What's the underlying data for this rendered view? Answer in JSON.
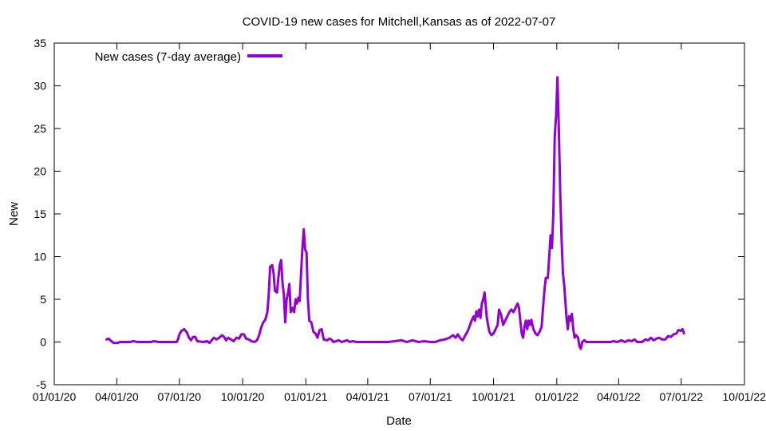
{
  "chart_data": {
    "type": "line",
    "title": "COVID-19 new cases for Mitchell,Kansas as of 2022-07-07",
    "xlabel": "Date",
    "ylabel": "New",
    "xlim": [
      "2020-01-01",
      "2022-10-01"
    ],
    "ylim": [
      -5,
      35
    ],
    "y_ticks": [
      -5,
      0,
      5,
      10,
      15,
      20,
      25,
      30,
      35
    ],
    "x_ticks": [
      {
        "date": "2020-01-01",
        "label": "01/01/20"
      },
      {
        "date": "2020-04-01",
        "label": "04/01/20"
      },
      {
        "date": "2020-07-01",
        "label": "07/01/20"
      },
      {
        "date": "2020-10-01",
        "label": "10/01/20"
      },
      {
        "date": "2021-01-01",
        "label": "01/01/21"
      },
      {
        "date": "2021-04-01",
        "label": "04/01/21"
      },
      {
        "date": "2021-07-01",
        "label": "07/01/21"
      },
      {
        "date": "2021-10-01",
        "label": "10/01/21"
      },
      {
        "date": "2022-01-01",
        "label": "01/01/22"
      },
      {
        "date": "2022-04-01",
        "label": "04/01/22"
      },
      {
        "date": "2022-07-01",
        "label": "07/01/22"
      },
      {
        "date": "2022-10-01",
        "label": "10/01/22"
      }
    ],
    "grid": false,
    "legend_position": "top-left",
    "series": [
      {
        "name": "New cases (7-day average)",
        "color": "#9400d3",
        "points": [
          [
            "2020-03-17",
            0.3
          ],
          [
            "2020-03-20",
            0.4
          ],
          [
            "2020-03-24",
            0.1
          ],
          [
            "2020-03-27",
            -0.1
          ],
          [
            "2020-04-03",
            -0.1
          ],
          [
            "2020-04-05",
            0.0
          ],
          [
            "2020-04-20",
            0.0
          ],
          [
            "2020-04-25",
            0.1
          ],
          [
            "2020-05-01",
            0.0
          ],
          [
            "2020-05-20",
            0.0
          ],
          [
            "2020-05-25",
            0.1
          ],
          [
            "2020-06-01",
            0.0
          ],
          [
            "2020-06-27",
            0.0
          ],
          [
            "2020-06-29",
            0.3
          ],
          [
            "2020-07-01",
            0.9
          ],
          [
            "2020-07-04",
            1.3
          ],
          [
            "2020-07-08",
            1.5
          ],
          [
            "2020-07-12",
            1.1
          ],
          [
            "2020-07-15",
            0.5
          ],
          [
            "2020-07-18",
            0.2
          ],
          [
            "2020-07-21",
            0.6
          ],
          [
            "2020-07-24",
            0.6
          ],
          [
            "2020-07-27",
            0.1
          ],
          [
            "2020-08-05",
            0.0
          ],
          [
            "2020-08-10",
            0.1
          ],
          [
            "2020-08-14",
            -0.1
          ],
          [
            "2020-08-17",
            0.2
          ],
          [
            "2020-08-20",
            0.5
          ],
          [
            "2020-08-24",
            0.3
          ],
          [
            "2020-08-28",
            0.5
          ],
          [
            "2020-09-01",
            0.8
          ],
          [
            "2020-09-04",
            0.6
          ],
          [
            "2020-09-07",
            0.2
          ],
          [
            "2020-09-10",
            0.5
          ],
          [
            "2020-09-14",
            0.3
          ],
          [
            "2020-09-18",
            0.1
          ],
          [
            "2020-09-22",
            0.5
          ],
          [
            "2020-09-26",
            0.4
          ],
          [
            "2020-09-29",
            0.9
          ],
          [
            "2020-10-03",
            0.9
          ],
          [
            "2020-10-06",
            0.4
          ],
          [
            "2020-10-10",
            0.3
          ],
          [
            "2020-10-14",
            0.1
          ],
          [
            "2020-10-18",
            0.0
          ],
          [
            "2020-10-22",
            0.2
          ],
          [
            "2020-10-25",
            0.8
          ],
          [
            "2020-10-28",
            1.7
          ],
          [
            "2020-10-31",
            2.3
          ],
          [
            "2020-11-03",
            2.6
          ],
          [
            "2020-11-06",
            3.5
          ],
          [
            "2020-11-08",
            5.5
          ],
          [
            "2020-11-10",
            8.8
          ],
          [
            "2020-11-13",
            9.0
          ],
          [
            "2020-11-15",
            8.1
          ],
          [
            "2020-11-17",
            6.0
          ],
          [
            "2020-11-20",
            5.8
          ],
          [
            "2020-11-22",
            7.5
          ],
          [
            "2020-11-24",
            9.0
          ],
          [
            "2020-11-26",
            9.6
          ],
          [
            "2020-11-28",
            7.0
          ],
          [
            "2020-11-30",
            5.5
          ],
          [
            "2020-12-02",
            2.3
          ],
          [
            "2020-12-04",
            5.0
          ],
          [
            "2020-12-06",
            5.7
          ],
          [
            "2020-12-08",
            6.8
          ],
          [
            "2020-12-10",
            3.5
          ],
          [
            "2020-12-13",
            4.0
          ],
          [
            "2020-12-15",
            3.5
          ],
          [
            "2020-12-17",
            5.0
          ],
          [
            "2020-12-19",
            4.5
          ],
          [
            "2020-12-21",
            5.2
          ],
          [
            "2020-12-23",
            4.8
          ],
          [
            "2020-12-25",
            8.0
          ],
          [
            "2020-12-27",
            11.0
          ],
          [
            "2020-12-29",
            13.2
          ],
          [
            "2020-12-31",
            10.8
          ],
          [
            "2021-01-02",
            10.5
          ],
          [
            "2021-01-04",
            5.0
          ],
          [
            "2021-01-06",
            2.5
          ],
          [
            "2021-01-09",
            2.3
          ],
          [
            "2021-01-12",
            1.2
          ],
          [
            "2021-01-15",
            1.0
          ],
          [
            "2021-01-18",
            0.5
          ],
          [
            "2021-01-21",
            1.4
          ],
          [
            "2021-01-24",
            1.5
          ],
          [
            "2021-01-27",
            0.3
          ],
          [
            "2021-02-01",
            0.2
          ],
          [
            "2021-02-04",
            0.4
          ],
          [
            "2021-02-07",
            0.3
          ],
          [
            "2021-02-10",
            0.0
          ],
          [
            "2021-02-14",
            0.1
          ],
          [
            "2021-02-18",
            0.2
          ],
          [
            "2021-02-22",
            0.0
          ],
          [
            "2021-02-26",
            0.1
          ],
          [
            "2021-03-02",
            0.2
          ],
          [
            "2021-03-06",
            0.0
          ],
          [
            "2021-03-10",
            0.1
          ],
          [
            "2021-03-16",
            0.0
          ],
          [
            "2021-04-01",
            0.0
          ],
          [
            "2021-04-20",
            0.0
          ],
          [
            "2021-05-01",
            0.0
          ],
          [
            "2021-05-10",
            0.1
          ],
          [
            "2021-05-20",
            0.2
          ],
          [
            "2021-05-28",
            0.0
          ],
          [
            "2021-06-05",
            0.2
          ],
          [
            "2021-06-14",
            0.0
          ],
          [
            "2021-06-22",
            0.1
          ],
          [
            "2021-07-01",
            0.0
          ],
          [
            "2021-07-08",
            0.0
          ],
          [
            "2021-07-15",
            0.2
          ],
          [
            "2021-07-22",
            0.3
          ],
          [
            "2021-07-29",
            0.5
          ],
          [
            "2021-08-03",
            0.8
          ],
          [
            "2021-08-07",
            0.5
          ],
          [
            "2021-08-10",
            0.9
          ],
          [
            "2021-08-14",
            0.4
          ],
          [
            "2021-08-17",
            0.2
          ],
          [
            "2021-08-21",
            0.8
          ],
          [
            "2021-08-24",
            1.2
          ],
          [
            "2021-08-27",
            1.8
          ],
          [
            "2021-08-30",
            2.5
          ],
          [
            "2021-09-02",
            3.0
          ],
          [
            "2021-09-04",
            2.5
          ],
          [
            "2021-09-06",
            3.6
          ],
          [
            "2021-09-08",
            3.0
          ],
          [
            "2021-09-10",
            3.8
          ],
          [
            "2021-09-12",
            2.8
          ],
          [
            "2021-09-14",
            4.5
          ],
          [
            "2021-09-16",
            5.0
          ],
          [
            "2021-09-18",
            5.8
          ],
          [
            "2021-09-21",
            3.0
          ],
          [
            "2021-09-23",
            2.0
          ],
          [
            "2021-09-25",
            1.2
          ],
          [
            "2021-09-28",
            0.8
          ],
          [
            "2021-10-01",
            1.0
          ],
          [
            "2021-10-04",
            1.5
          ],
          [
            "2021-10-07",
            2.0
          ],
          [
            "2021-10-09",
            3.8
          ],
          [
            "2021-10-12",
            3.2
          ],
          [
            "2021-10-15",
            2.0
          ],
          [
            "2021-10-18",
            2.5
          ],
          [
            "2021-10-21",
            3.0
          ],
          [
            "2021-10-24",
            3.5
          ],
          [
            "2021-10-27",
            3.8
          ],
          [
            "2021-10-30",
            3.5
          ],
          [
            "2021-11-02",
            4.0
          ],
          [
            "2021-11-05",
            4.5
          ],
          [
            "2021-11-07",
            4.0
          ],
          [
            "2021-11-09",
            2.5
          ],
          [
            "2021-11-11",
            1.0
          ],
          [
            "2021-11-13",
            0.5
          ],
          [
            "2021-11-15",
            1.8
          ],
          [
            "2021-11-17",
            2.5
          ],
          [
            "2021-11-19",
            1.5
          ],
          [
            "2021-11-21",
            2.5
          ],
          [
            "2021-11-23",
            2.0
          ],
          [
            "2021-11-25",
            2.6
          ],
          [
            "2021-11-28",
            1.5
          ],
          [
            "2021-12-01",
            1.0
          ],
          [
            "2021-12-04",
            0.8
          ],
          [
            "2021-12-07",
            1.2
          ],
          [
            "2021-12-10",
            1.8
          ],
          [
            "2021-12-12",
            4.0
          ],
          [
            "2021-12-14",
            6.0
          ],
          [
            "2021-12-16",
            7.5
          ],
          [
            "2021-12-19",
            7.5
          ],
          [
            "2021-12-21",
            10.0
          ],
          [
            "2021-12-23",
            12.5
          ],
          [
            "2021-12-25",
            11.0
          ],
          [
            "2021-12-27",
            15.0
          ],
          [
            "2021-12-29",
            24.0
          ],
          [
            "2021-12-31",
            26.5
          ],
          [
            "2022-01-02",
            31.0
          ],
          [
            "2022-01-04",
            25.0
          ],
          [
            "2022-01-06",
            17.5
          ],
          [
            "2022-01-08",
            12.0
          ],
          [
            "2022-01-10",
            8.0
          ],
          [
            "2022-01-12",
            6.5
          ],
          [
            "2022-01-15",
            3.0
          ],
          [
            "2022-01-17",
            1.5
          ],
          [
            "2022-01-19",
            3.0
          ],
          [
            "2022-01-21",
            2.5
          ],
          [
            "2022-01-23",
            3.3
          ],
          [
            "2022-01-25",
            1.5
          ],
          [
            "2022-01-27",
            0.5
          ],
          [
            "2022-01-29",
            0.8
          ],
          [
            "2022-02-01",
            0.5
          ],
          [
            "2022-02-03",
            -0.5
          ],
          [
            "2022-02-05",
            -0.8
          ],
          [
            "2022-02-07",
            0.0
          ],
          [
            "2022-02-10",
            0.2
          ],
          [
            "2022-02-13",
            0.0
          ],
          [
            "2022-02-20",
            0.0
          ],
          [
            "2022-03-01",
            0.0
          ],
          [
            "2022-03-10",
            0.0
          ],
          [
            "2022-03-20",
            0.0
          ],
          [
            "2022-03-25",
            0.1
          ],
          [
            "2022-03-30",
            0.0
          ],
          [
            "2022-04-05",
            0.2
          ],
          [
            "2022-04-10",
            0.0
          ],
          [
            "2022-04-15",
            0.2
          ],
          [
            "2022-04-20",
            0.1
          ],
          [
            "2022-04-24",
            0.3
          ],
          [
            "2022-04-28",
            0.0
          ],
          [
            "2022-05-05",
            0.0
          ],
          [
            "2022-05-10",
            0.3
          ],
          [
            "2022-05-14",
            0.2
          ],
          [
            "2022-05-18",
            0.5
          ],
          [
            "2022-05-22",
            0.2
          ],
          [
            "2022-05-26",
            0.4
          ],
          [
            "2022-05-30",
            0.5
          ],
          [
            "2022-06-03",
            0.3
          ],
          [
            "2022-06-08",
            0.3
          ],
          [
            "2022-06-12",
            0.7
          ],
          [
            "2022-06-16",
            0.6
          ],
          [
            "2022-06-20",
            0.9
          ],
          [
            "2022-06-24",
            1.0
          ],
          [
            "2022-06-27",
            1.4
          ],
          [
            "2022-06-30",
            1.3
          ],
          [
            "2022-07-03",
            1.5
          ],
          [
            "2022-07-05",
            1.0
          ]
        ]
      }
    ]
  }
}
